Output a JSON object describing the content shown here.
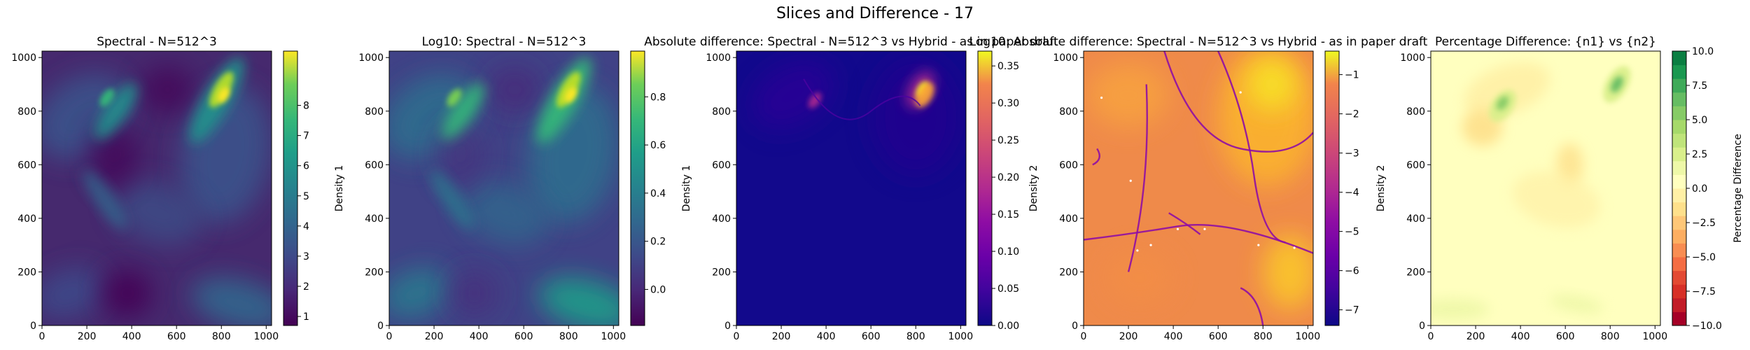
{
  "figure": {
    "suptitle": "Slices and Difference - 17"
  },
  "chart_data": [
    {
      "type": "heatmap",
      "title": "Spectral - N=512^3",
      "xlim": [
        0,
        1024
      ],
      "ylim": [
        0,
        1024
      ],
      "x_ticks": [
        "0",
        "200",
        "400",
        "600",
        "800",
        "1000"
      ],
      "y_ticks": [
        "0",
        "200",
        "400",
        "600",
        "800",
        "1000"
      ],
      "colormap": "viridis",
      "colorbar": {
        "label": "Density 1",
        "range": [
          0.7,
          9.8
        ],
        "ticks": [
          "1",
          "2",
          "3",
          "4",
          "5",
          "6",
          "7",
          "8"
        ]
      }
    },
    {
      "type": "heatmap",
      "title": "Log10: Spectral - N=512^3",
      "xlim": [
        0,
        1024
      ],
      "ylim": [
        0,
        1024
      ],
      "x_ticks": [
        "0",
        "200",
        "400",
        "600",
        "800",
        "1000"
      ],
      "y_ticks": [
        "0",
        "200",
        "400",
        "600",
        "800",
        "1000"
      ],
      "colormap": "viridis",
      "colorbar": {
        "label": "Density 1",
        "range": [
          -0.15,
          0.99
        ],
        "ticks": [
          "0.0",
          "0.2",
          "0.4",
          "0.6",
          "0.8"
        ]
      }
    },
    {
      "type": "heatmap",
      "title": "Absolute difference: Spectral - N=512^3 vs Hybrid - as in paper draft",
      "xlim": [
        0,
        1024
      ],
      "ylim": [
        0,
        1024
      ],
      "x_ticks": [
        "0",
        "200",
        "400",
        "600",
        "800",
        "1000"
      ],
      "y_ticks": [
        "0",
        "200",
        "400",
        "600",
        "800",
        "1000"
      ],
      "colormap": "plasma",
      "colorbar": {
        "label": "Density 2",
        "range": [
          0,
          0.37
        ],
        "ticks": [
          "0.00",
          "0.05",
          "0.10",
          "0.15",
          "0.20",
          "0.25",
          "0.30",
          "0.35"
        ]
      }
    },
    {
      "type": "heatmap",
      "title": "Log10: Absolute difference: Spectral - N=512^3 vs Hybrid - as in paper draft",
      "xlim": [
        0,
        1024
      ],
      "ylim": [
        0,
        1024
      ],
      "x_ticks": [
        "0",
        "200",
        "400",
        "600",
        "800",
        "1000"
      ],
      "y_ticks": [
        "0",
        "200",
        "400",
        "600",
        "800",
        "1000"
      ],
      "colormap": "plasma",
      "colorbar": {
        "label": "Density 2",
        "range": [
          -7.4,
          -0.4
        ],
        "ticks": [
          "−7",
          "−6",
          "−5",
          "−4",
          "−3",
          "−2",
          "−1"
        ]
      }
    },
    {
      "type": "heatmap",
      "title": "Percentage Difference: {n1} vs {n2}",
      "xlim": [
        0,
        1024
      ],
      "ylim": [
        0,
        1024
      ],
      "x_ticks": [
        "0",
        "200",
        "400",
        "600",
        "800",
        "1000"
      ],
      "y_ticks": [
        "0",
        "200",
        "400",
        "600",
        "800",
        "1000"
      ],
      "colormap": "RdYlGn (discrete)",
      "colorbar": {
        "label": "Percentage Difference",
        "range": [
          -10,
          10
        ],
        "ticks": [
          "−10.0",
          "−7.5",
          "−5.0",
          "−2.5",
          "0.0",
          "2.5",
          "5.0",
          "7.5",
          "10.0"
        ]
      }
    }
  ]
}
